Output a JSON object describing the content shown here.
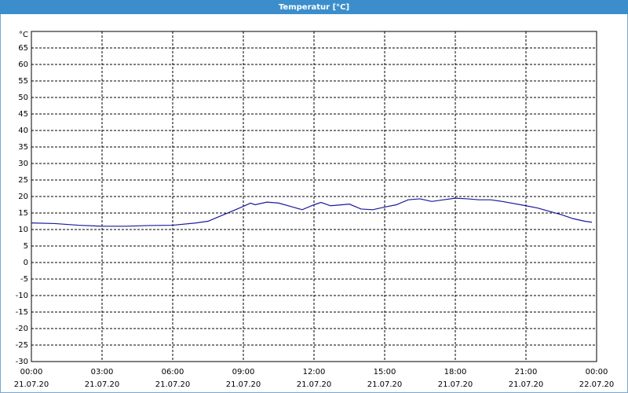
{
  "chart_data": {
    "type": "line",
    "title": "Temperatur [°C]",
    "y_unit": "°C",
    "x": [
      0,
      1,
      2,
      3,
      4,
      5,
      6,
      7,
      7.5,
      8,
      8.5,
      9,
      9.3,
      9.5,
      10,
      10.5,
      11,
      11.5,
      12,
      12.3,
      12.7,
      13.2,
      13.5,
      14,
      14.5,
      15,
      15.5,
      16,
      16.5,
      17,
      17.5,
      18,
      18.5,
      19,
      19.5,
      20,
      21,
      21.5,
      22,
      22.5,
      23,
      23.5,
      23.8
    ],
    "series": [
      {
        "color": "#1a1a9c",
        "values": [
          12,
          11.8,
          11.3,
          11,
          11,
          11.2,
          11.3,
          12,
          12.5,
          14,
          15.5,
          17,
          18,
          17.5,
          18.3,
          18,
          17,
          16,
          17.5,
          18.2,
          17.2,
          17.5,
          17.7,
          16.2,
          16,
          16.8,
          17.5,
          19,
          19.3,
          18.5,
          19,
          19.5,
          19.3,
          19,
          19,
          18.5,
          17.2,
          16.5,
          15.5,
          14.5,
          13.3,
          12.5,
          12.2
        ]
      }
    ],
    "xlim": [
      0,
      24
    ],
    "xticks": [
      {
        "value": 0,
        "label": "00:00",
        "date": "21.07.20"
      },
      {
        "value": 3,
        "label": "03:00",
        "date": "21.07.20"
      },
      {
        "value": 6,
        "label": "06:00",
        "date": "21.07.20"
      },
      {
        "value": 9,
        "label": "09:00",
        "date": "21.07.20"
      },
      {
        "value": 12,
        "label": "12:00",
        "date": "21.07.20"
      },
      {
        "value": 15,
        "label": "15:00",
        "date": "21.07.20"
      },
      {
        "value": 18,
        "label": "18:00",
        "date": "21.07.20"
      },
      {
        "value": 21,
        "label": "21:00",
        "date": "21.07.20"
      },
      {
        "value": 24,
        "label": "00:00",
        "date": "22.07.20"
      }
    ],
    "ylim": [
      -30,
      70
    ],
    "yticks": [
      65,
      60,
      55,
      50,
      45,
      40,
      35,
      30,
      25,
      20,
      15,
      10,
      5,
      0,
      -5,
      -10,
      -15,
      -20,
      -25,
      -30
    ],
    "grid": true
  }
}
